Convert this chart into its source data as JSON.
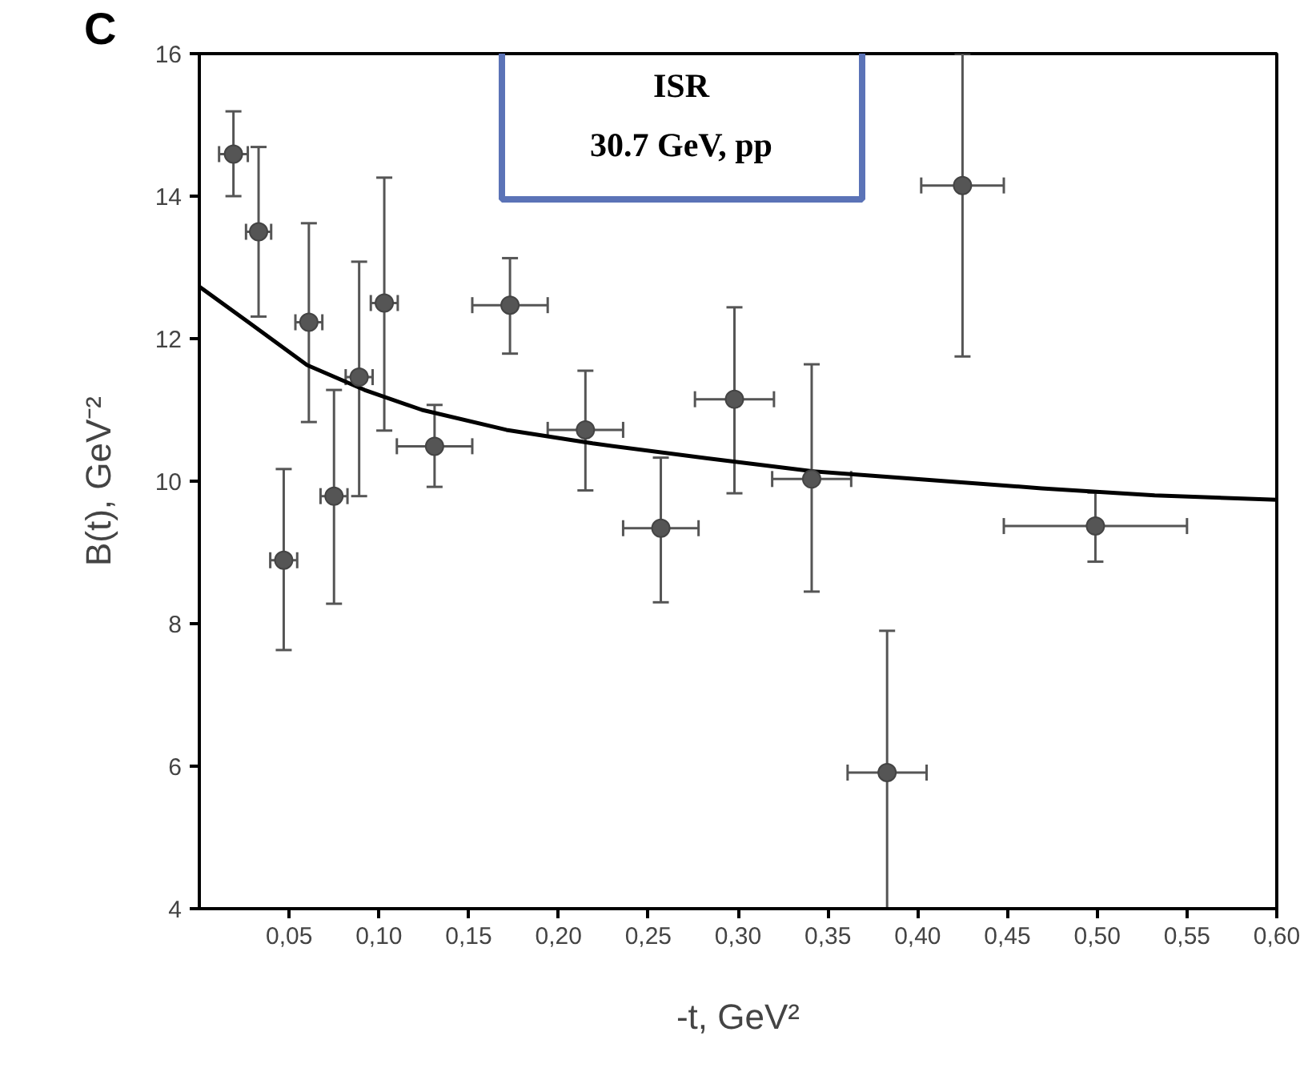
{
  "chart_data": {
    "type": "scatter",
    "xlabel": "-t, GeV²",
    "ylabel": "B(t), GeV⁻²",
    "annotations": [
      "C",
      "ISR",
      "30.7 GeV, pp"
    ],
    "xlim": [
      0,
      0.6
    ],
    "xticks": [
      {
        "value": 0.05,
        "label": "0,05"
      },
      {
        "value": 0.1,
        "label": "0,10"
      },
      {
        "value": 0.15,
        "label": "0,15"
      },
      {
        "value": 0.2,
        "label": "0,20"
      },
      {
        "value": 0.25,
        "label": "0,25"
      },
      {
        "value": 0.3,
        "label": "0,30"
      },
      {
        "value": 0.35,
        "label": "0,35"
      },
      {
        "value": 0.4,
        "label": "0,40"
      },
      {
        "value": 0.45,
        "label": "0,45"
      },
      {
        "value": 0.5,
        "label": "0,50"
      },
      {
        "value": 0.55,
        "label": "0,55"
      },
      {
        "value": 0.6,
        "label": "0,60"
      }
    ],
    "ylim": [
      4,
      16
    ],
    "yticks": [
      4,
      6,
      8,
      10,
      12,
      14,
      16
    ],
    "grid": false,
    "marker": "circle",
    "series": [
      {
        "color": "#555555",
        "x": [
          0.019,
          0.033,
          0.047,
          0.061,
          0.075,
          0.089,
          0.103,
          0.131,
          0.173,
          0.215,
          0.257,
          0.298,
          0.341,
          0.383,
          0.425,
          0.499
        ],
        "values": [
          14.59,
          13.5,
          8.89,
          12.23,
          9.79,
          11.46,
          12.5,
          10.49,
          12.47,
          10.72,
          9.34,
          11.15,
          10.03,
          5.91,
          14.15,
          9.37
        ],
        "errors": [
          [
            14.0,
            15.19
          ],
          [
            12.31,
            14.69
          ],
          [
            7.63,
            10.17
          ],
          [
            10.83,
            13.62
          ],
          [
            8.28,
            11.28
          ],
          [
            9.79,
            13.08
          ],
          [
            10.71,
            14.26
          ],
          [
            9.92,
            11.07
          ],
          [
            11.79,
            13.13
          ],
          [
            9.87,
            11.55
          ],
          [
            8.3,
            10.33
          ],
          [
            9.83,
            12.44
          ],
          [
            8.45,
            11.64
          ],
          [
            4,
            7.9
          ],
          [
            11.75,
            16
          ],
          [
            8.87,
            9.84
          ]
        ],
        "xerrors": [
          0.008,
          0.007,
          0.0075,
          0.0075,
          0.0075,
          0.0075,
          0.0075,
          0.021,
          0.021,
          0.021,
          0.021,
          0.022,
          0.022,
          0.022,
          0.023,
          [
            0.448,
            0.55
          ]
        ]
      },
      {
        "type": "line",
        "color": "#000000",
        "marker": "none",
        "line_style": "solid",
        "x": [
          0,
          0.028,
          0.06,
          0.092,
          0.124,
          0.171,
          0.219,
          0.283,
          0.341,
          0.405,
          0.469,
          0.532,
          0.6
        ],
        "values": [
          12.73,
          12.22,
          11.63,
          11.28,
          11.0,
          10.72,
          10.53,
          10.32,
          10.14,
          10.02,
          9.9,
          9.8,
          9.74
        ]
      }
    ]
  }
}
